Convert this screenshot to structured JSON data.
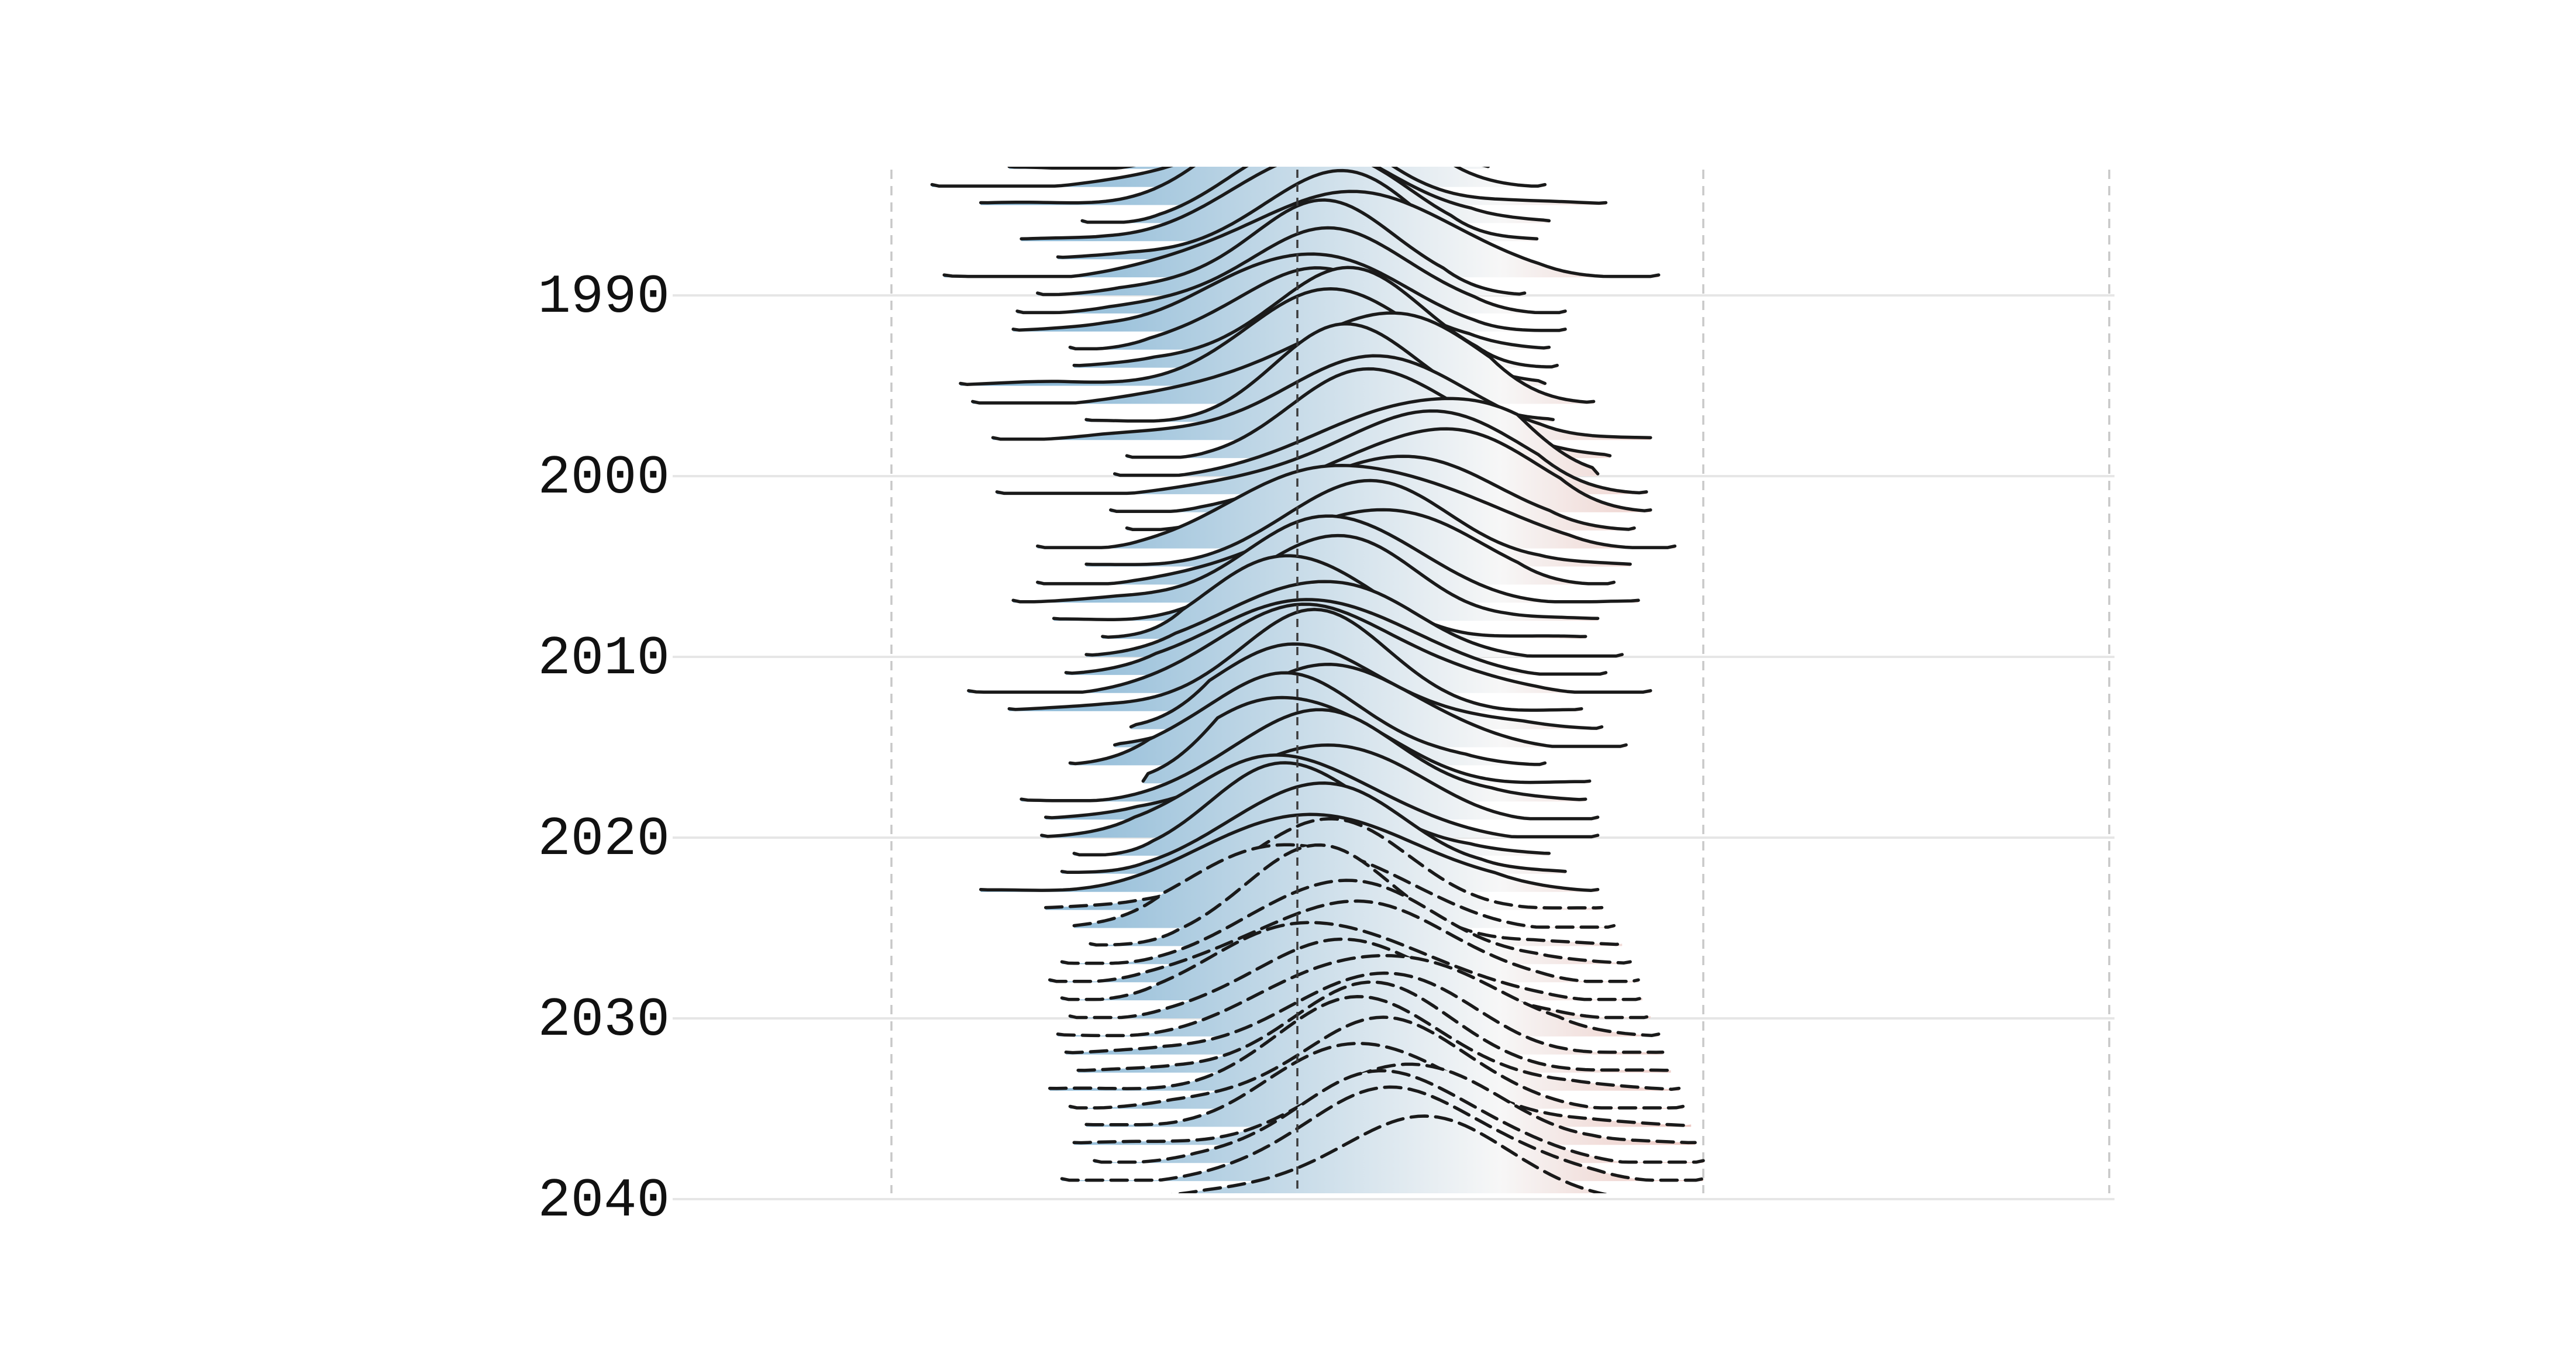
{
  "chart_data": {
    "type": "area",
    "subtype": "ridgeline",
    "title": "",
    "xlabel": "",
    "ylabel": "",
    "y_tick_labels": [
      "1990",
      "2000",
      "2010",
      "2020",
      "2030",
      "2040"
    ],
    "y_ticks": [
      1990,
      2000,
      2010,
      2020,
      2030,
      2040
    ],
    "x_reference_lines": [
      -1,
      0,
      1,
      2
    ],
    "x_range": [
      -1,
      2
    ],
    "y_range": [
      1983,
      2040
    ],
    "grid": true,
    "legend": "none",
    "observed_until": 2023,
    "dashed_from": 2024,
    "colormap": {
      "negative": "#6aa5cc",
      "neutral": "#f7f7f7",
      "positive": "#d6604d"
    },
    "series": [
      {
        "year": 1983,
        "xmin": -0.71,
        "xmax": 0.47,
        "mean": 0.02,
        "spread": 0.19
      },
      {
        "year": 1984,
        "xmin": -0.9,
        "xmax": 0.61,
        "mean": 0.04,
        "spread": 0.21
      },
      {
        "year": 1985,
        "xmin": -0.78,
        "xmax": 0.76,
        "mean": 0.0,
        "spread": 0.21
      },
      {
        "year": 1986,
        "xmin": -0.53,
        "xmax": 0.62,
        "mean": 0.07,
        "spread": 0.2
      },
      {
        "year": 1987,
        "xmin": -0.68,
        "xmax": 0.59,
        "mean": 0.02,
        "spread": 0.22
      },
      {
        "year": 1988,
        "xmin": -0.59,
        "xmax": 0.48,
        "mean": 0.05,
        "spread": 0.19
      },
      {
        "year": 1989,
        "xmin": -0.87,
        "xmax": 0.89,
        "mean": 0.12,
        "spread": 0.26
      },
      {
        "year": 1990,
        "xmin": -0.64,
        "xmax": 0.56,
        "mean": 0.05,
        "spread": 0.2
      },
      {
        "year": 1991,
        "xmin": -0.69,
        "xmax": 0.66,
        "mean": 0.06,
        "spread": 0.21
      },
      {
        "year": 1992,
        "xmin": -0.7,
        "xmax": 0.66,
        "mean": 0.06,
        "spread": 0.21
      },
      {
        "year": 1993,
        "xmin": -0.56,
        "xmax": 0.62,
        "mean": 0.04,
        "spread": 0.2
      },
      {
        "year": 1994,
        "xmin": -0.55,
        "xmax": 0.64,
        "mean": 0.09,
        "spread": 0.21
      },
      {
        "year": 1995,
        "xmin": -0.83,
        "xmax": 0.61,
        "mean": 0.11,
        "spread": 0.24
      },
      {
        "year": 1996,
        "xmin": -0.8,
        "xmax": 0.73,
        "mean": 0.14,
        "spread": 0.24
      },
      {
        "year": 1997,
        "xmin": -0.52,
        "xmax": 0.63,
        "mean": 0.16,
        "spread": 0.2
      },
      {
        "year": 1998,
        "xmin": -0.75,
        "xmax": 0.87,
        "mean": 0.19,
        "spread": 0.25
      },
      {
        "year": 1999,
        "xmin": -0.42,
        "xmax": 0.77,
        "mean": 0.24,
        "spread": 0.21
      },
      {
        "year": 2000,
        "xmin": -0.45,
        "xmax": 0.74,
        "mean": 0.27,
        "spread": 0.21
      },
      {
        "year": 2001,
        "xmin": -0.74,
        "xmax": 0.86,
        "mean": 0.28,
        "spread": 0.24
      },
      {
        "year": 2002,
        "xmin": -0.46,
        "xmax": 0.87,
        "mean": 0.28,
        "spread": 0.22
      },
      {
        "year": 2003,
        "xmin": -0.42,
        "xmax": 0.83,
        "mean": 0.22,
        "spread": 0.21
      },
      {
        "year": 2004,
        "xmin": -0.64,
        "xmax": 0.93,
        "mean": 0.21,
        "spread": 0.25
      },
      {
        "year": 2005,
        "xmin": -0.52,
        "xmax": 0.82,
        "mean": 0.17,
        "spread": 0.22
      },
      {
        "year": 2006,
        "xmin": -0.64,
        "xmax": 0.78,
        "mean": 0.14,
        "spread": 0.21
      },
      {
        "year": 2007,
        "xmin": -0.7,
        "xmax": 0.84,
        "mean": 0.11,
        "spread": 0.21
      },
      {
        "year": 2008,
        "xmin": -0.6,
        "xmax": 0.74,
        "mean": 0.07,
        "spread": 0.2
      },
      {
        "year": 2009,
        "xmin": -0.48,
        "xmax": 0.71,
        "mean": 0.02,
        "spread": 0.19
      },
      {
        "year": 2010,
        "xmin": -0.52,
        "xmax": 0.8,
        "mean": 0.0,
        "spread": 0.19
      },
      {
        "year": 2011,
        "xmin": -0.57,
        "xmax": 0.76,
        "mean": 0.05,
        "spread": 0.22
      },
      {
        "year": 2012,
        "xmin": -0.81,
        "xmax": 0.87,
        "mean": 0.06,
        "spread": 0.23
      },
      {
        "year": 2013,
        "xmin": -0.71,
        "xmax": 0.7,
        "mean": 0.02,
        "spread": 0.21
      },
      {
        "year": 2014,
        "xmin": -0.41,
        "xmax": 0.75,
        "mean": 0.03,
        "spread": 0.22
      },
      {
        "year": 2015,
        "xmin": -0.45,
        "xmax": 0.81,
        "mean": 0.08,
        "spread": 0.22
      },
      {
        "year": 2016,
        "xmin": -0.56,
        "xmax": 0.61,
        "mean": -0.04,
        "spread": 0.21
      },
      {
        "year": 2017,
        "xmin": -0.38,
        "xmax": 0.72,
        "mean": 0.02,
        "spread": 0.21
      },
      {
        "year": 2018,
        "xmin": -0.68,
        "xmax": 0.71,
        "mean": 0.04,
        "spread": 0.22
      },
      {
        "year": 2019,
        "xmin": -0.62,
        "xmax": 0.74,
        "mean": 0.02,
        "spread": 0.21
      },
      {
        "year": 2020,
        "xmin": -0.63,
        "xmax": 0.74,
        "mean": -0.01,
        "spread": 0.21
      },
      {
        "year": 2021,
        "xmin": -0.55,
        "xmax": 0.62,
        "mean": 0.03,
        "spread": 0.2
      },
      {
        "year": 2022,
        "xmin": -0.58,
        "xmax": 0.66,
        "mean": 0.02,
        "spread": 0.22
      },
      {
        "year": 2023,
        "xmin": -0.78,
        "xmax": 0.74,
        "mean": 0.02,
        "spread": 0.25
      },
      {
        "year": 2024,
        "xmin": -0.62,
        "xmax": 0.75,
        "mean": 0.05,
        "spread": 0.22
      },
      {
        "year": 2025,
        "xmin": -0.55,
        "xmax": 0.78,
        "mean": 0.05,
        "spread": 0.22
      },
      {
        "year": 2026,
        "xmin": -0.51,
        "xmax": 0.8,
        "mean": 0.06,
        "spread": 0.21
      },
      {
        "year": 2027,
        "xmin": -0.58,
        "xmax": 0.82,
        "mean": 0.09,
        "spread": 0.22
      },
      {
        "year": 2028,
        "xmin": -0.61,
        "xmax": 0.84,
        "mean": 0.1,
        "spread": 0.23
      },
      {
        "year": 2029,
        "xmin": -0.58,
        "xmax": 0.85,
        "mean": 0.11,
        "spread": 0.22
      },
      {
        "year": 2030,
        "xmin": -0.56,
        "xmax": 0.87,
        "mean": 0.13,
        "spread": 0.22
      },
      {
        "year": 2031,
        "xmin": -0.59,
        "xmax": 0.89,
        "mean": 0.15,
        "spread": 0.23
      },
      {
        "year": 2032,
        "xmin": -0.57,
        "xmax": 0.9,
        "mean": 0.16,
        "spread": 0.22
      },
      {
        "year": 2033,
        "xmin": -0.54,
        "xmax": 0.92,
        "mean": 0.18,
        "spread": 0.22
      },
      {
        "year": 2034,
        "xmin": -0.61,
        "xmax": 0.94,
        "mean": 0.19,
        "spread": 0.23
      },
      {
        "year": 2035,
        "xmin": -0.56,
        "xmax": 0.95,
        "mean": 0.2,
        "spread": 0.22
      },
      {
        "year": 2036,
        "xmin": -0.52,
        "xmax": 0.97,
        "mean": 0.22,
        "spread": 0.22
      },
      {
        "year": 2037,
        "xmin": -0.55,
        "xmax": 0.98,
        "mean": 0.24,
        "spread": 0.22
      },
      {
        "year": 2038,
        "xmin": -0.5,
        "xmax": 1.0,
        "mean": 0.25,
        "spread": 0.22
      },
      {
        "year": 2039,
        "xmin": -0.58,
        "xmax": 1.0,
        "mean": 0.27,
        "spread": 0.23
      },
      {
        "year": 2040,
        "xmin": -0.47,
        "xmax": 1.0,
        "mean": 0.28,
        "spread": 0.22
      }
    ]
  }
}
